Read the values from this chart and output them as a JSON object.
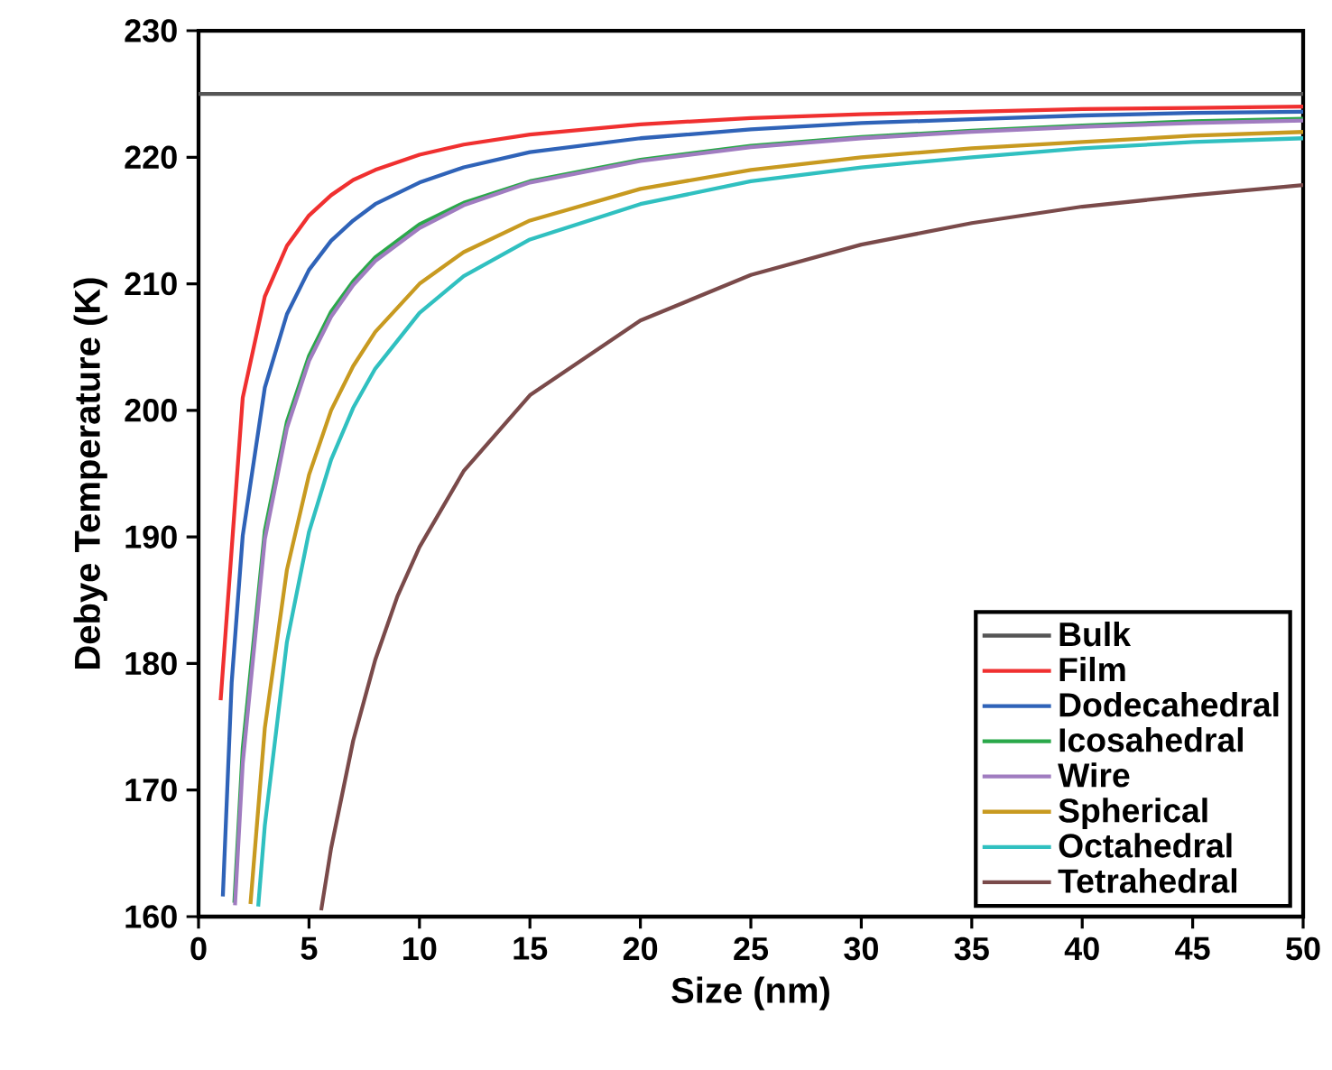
{
  "chart_data": {
    "type": "line",
    "xlabel": "Size (nm)",
    "ylabel": "Debye Temperature (K)",
    "xlim": [
      0,
      50
    ],
    "ylim": [
      160,
      230
    ],
    "xticks": [
      0,
      5,
      10,
      15,
      20,
      25,
      30,
      35,
      40,
      45,
      50
    ],
    "yticks": [
      160,
      170,
      180,
      190,
      200,
      210,
      220,
      230
    ],
    "legend": "bottom right",
    "series": [
      {
        "name": "Bulk",
        "color": "#555555",
        "x": [
          0,
          50
        ],
        "values": [
          225,
          225
        ]
      },
      {
        "name": "Film",
        "color": "#f03030",
        "x": [
          1,
          2,
          3,
          4,
          5,
          6,
          7,
          8,
          10,
          12,
          15,
          20,
          25,
          30,
          35,
          40,
          45,
          50
        ],
        "values": [
          177.1,
          201.0,
          209.0,
          213.0,
          215.4,
          217.0,
          218.2,
          219.0,
          220.2,
          221.0,
          221.8,
          222.6,
          223.1,
          223.4,
          223.6,
          223.8,
          223.9,
          224.0
        ]
      },
      {
        "name": "Dodecahedral",
        "color": "#2f63b8",
        "x": [
          1.1,
          1.5,
          2,
          3,
          4,
          5,
          6,
          7,
          8,
          10,
          12,
          15,
          20,
          25,
          30,
          35,
          40,
          45,
          50
        ],
        "values": [
          161.6,
          178.5,
          190.1,
          201.8,
          207.6,
          211.1,
          213.4,
          215.0,
          216.3,
          218.0,
          219.2,
          220.4,
          221.5,
          222.2,
          222.7,
          223.0,
          223.3,
          223.5,
          223.6
        ]
      },
      {
        "name": "Icosahedral",
        "color": "#2aa84a",
        "x": [
          1.62,
          2,
          3,
          4,
          5,
          6,
          7,
          8,
          10,
          12,
          15,
          20,
          25,
          30,
          35,
          40,
          45,
          50
        ],
        "values": [
          161.1,
          173.3,
          190.5,
          199.1,
          204.3,
          207.8,
          210.2,
          212.1,
          214.7,
          216.4,
          218.1,
          219.8,
          220.9,
          221.6,
          222.1,
          222.5,
          222.85,
          223.05
        ]
      },
      {
        "name": "Wire",
        "color": "#a07cc0",
        "x": [
          1.65,
          2,
          3,
          4,
          5,
          6,
          7,
          8,
          10,
          12,
          15,
          20,
          25,
          30,
          35,
          40,
          45,
          50
        ],
        "values": [
          160.9,
          172.1,
          189.8,
          198.6,
          203.9,
          207.4,
          209.9,
          211.8,
          214.4,
          216.2,
          218.0,
          219.7,
          220.8,
          221.5,
          222.0,
          222.4,
          222.7,
          222.9
        ]
      },
      {
        "name": "Spherical",
        "color": "#c89a20",
        "x": [
          2.35,
          3,
          4,
          5,
          6,
          7,
          8,
          10,
          12,
          15,
          20,
          25,
          30,
          35,
          40,
          45,
          50
        ],
        "values": [
          161.0,
          174.9,
          187.4,
          194.9,
          200.0,
          203.5,
          206.2,
          210.0,
          212.5,
          215.0,
          217.5,
          219.0,
          220.0,
          220.7,
          221.2,
          221.7,
          222.0
        ]
      },
      {
        "name": "Octahedral",
        "color": "#30c0c0",
        "x": [
          2.7,
          3,
          4,
          5,
          6,
          7,
          8,
          10,
          12,
          15,
          20,
          25,
          30,
          35,
          40,
          45,
          50
        ],
        "values": [
          160.8,
          167.2,
          181.7,
          190.4,
          196.1,
          200.2,
          203.3,
          207.7,
          210.6,
          213.5,
          216.3,
          218.1,
          219.2,
          220.0,
          220.7,
          221.2,
          221.5
        ]
      },
      {
        "name": "Tetrahedral",
        "color": "#7a4a4a",
        "x": [
          5.55,
          6,
          7,
          8,
          9,
          10,
          12,
          15,
          20,
          25,
          30,
          35,
          40,
          45,
          50
        ],
        "values": [
          160.5,
          165.4,
          173.9,
          180.3,
          185.3,
          189.2,
          195.2,
          201.2,
          207.1,
          210.7,
          213.1,
          214.8,
          216.1,
          217.0,
          217.8
        ]
      }
    ]
  }
}
